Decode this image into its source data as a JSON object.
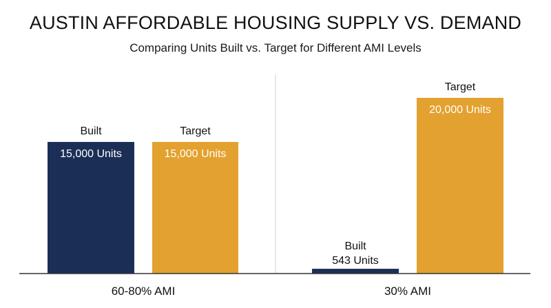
{
  "title": "AUSTIN AFFORDABLE HOUSING SUPPLY VS. DEMAND",
  "subtitle": "Comparing Units Built vs. Target for Different AMI Levels",
  "colors": {
    "built": "#1b2f56",
    "target": "#e3a12f",
    "divider": "#cfcfcf",
    "axis": "#333333"
  },
  "chart_data": {
    "type": "bar",
    "title": "AUSTIN AFFORDABLE HOUSING SUPPLY VS. DEMAND",
    "subtitle": "Comparing Units Built vs. Target for Different AMI Levels",
    "panels": [
      {
        "category": "60-80% AMI",
        "ylim": [
          0,
          15000
        ],
        "bars": [
          {
            "name": "Built",
            "value": 15000,
            "label": "15,000 Units"
          },
          {
            "name": "Target",
            "value": 15000,
            "label": "15,000 Units"
          }
        ]
      },
      {
        "category": "30% AMI",
        "ylim": [
          0,
          20000
        ],
        "bars": [
          {
            "name": "Built",
            "value": 543,
            "label": "543 Units"
          },
          {
            "name": "Target",
            "value": 20000,
            "label": "20,000 Units"
          }
        ]
      }
    ]
  }
}
